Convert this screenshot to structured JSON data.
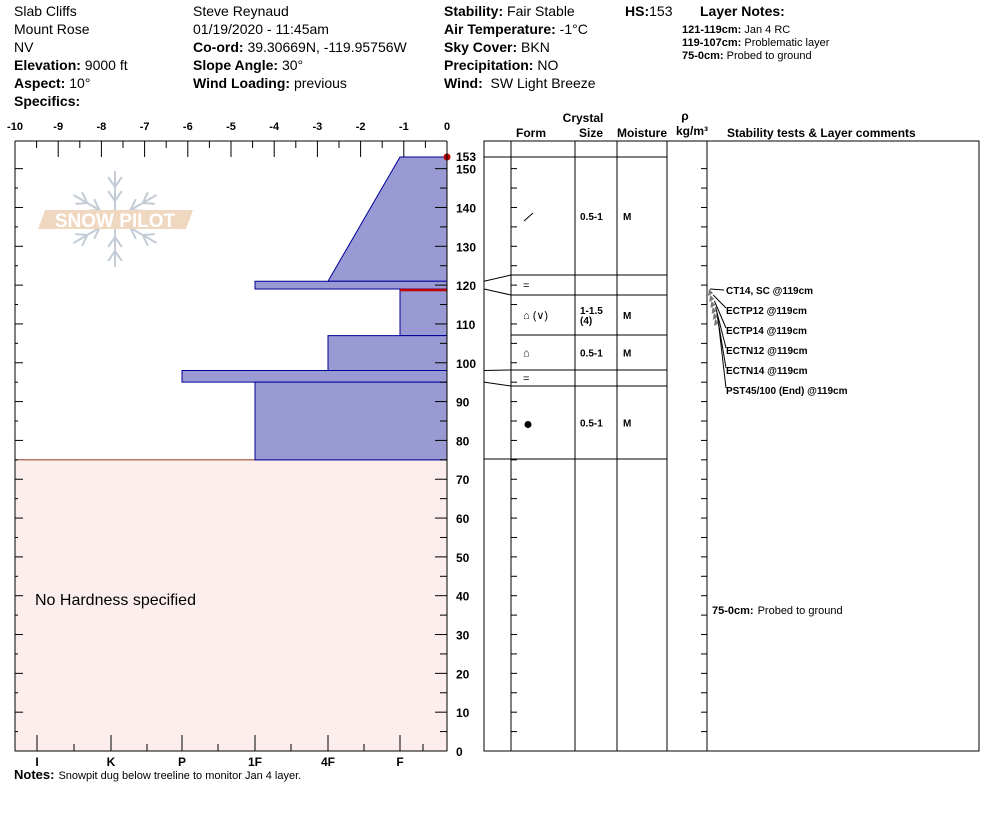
{
  "header": {
    "location": "Slab Cliffs",
    "area": "Mount Rose",
    "state": "NV",
    "elevation_label": "Elevation:",
    "elevation": "9000 ft",
    "aspect_label": "Aspect:",
    "aspect": "10°",
    "specifics_label": "Specifics:",
    "observer": "Steve Reynaud",
    "datetime": "01/19/2020 - 11:45am",
    "coord_label": "Co-ord:",
    "coord": "39.30669N, -119.95756W",
    "slope_label": "Slope Angle:",
    "slope": "30°",
    "wind_loading_label": "Wind Loading:",
    "wind_loading": "previous",
    "stability_label": "Stability:",
    "stability": "Fair Stable",
    "air_temp_label": "Air Temperature:",
    "air_temp": "-1°C",
    "sky_label": "Sky Cover:",
    "sky": "BKN",
    "precip_label": "Precipitation:",
    "precip": "NO",
    "wind_label": "Wind:",
    "wind": "SW Light Breeze",
    "hs_label": "HS:",
    "hs": "153",
    "layer_notes_title": "Layer Notes:",
    "layer_notes": [
      {
        "range": "121-119cm:",
        "text": "Jan 4 RC"
      },
      {
        "range": "119-107cm:",
        "text": "Problematic layer"
      },
      {
        "range": "75-0cm:",
        "text": "Probed to ground"
      }
    ]
  },
  "logo": {
    "text": "SNOW PILOT"
  },
  "columns": {
    "crystal": "Crystal",
    "form": "Form",
    "size": "Size",
    "moisture": "Moisture",
    "rho": "ρ",
    "density_unit": "kg/m³",
    "comments": "Stability tests & Layer comments"
  },
  "chart_data": {
    "type": "area",
    "title": "",
    "x_axis_top": {
      "ticks": [
        "-10",
        "-9",
        "-8",
        "-7",
        "-6",
        "-5",
        "-4",
        "-3",
        "-2",
        "-1",
        "0"
      ],
      "range": [
        -10,
        0
      ]
    },
    "x_axis_bottom": {
      "ticks": [
        "I",
        "K",
        "P",
        "1F",
        "4F",
        "F"
      ]
    },
    "y_axis": {
      "range": [
        0,
        153
      ],
      "ticks": [
        "0",
        "10",
        "20",
        "30",
        "40",
        "50",
        "60",
        "70",
        "80",
        "90",
        "100",
        "110",
        "120",
        "130",
        "140",
        "150"
      ],
      "hs_label": "153"
    },
    "fill_color": "#9999d4",
    "edge_color": "#000099",
    "no_hardness_color": "#fdeeee",
    "no_hardness_text": "No Hardness specified",
    "no_hardness_range": [
      0,
      75
    ],
    "layers": [
      {
        "top": 153,
        "bottom": 121,
        "hardness_top": "F",
        "hardness_bottom": "4F",
        "form": "/",
        "size": "0.5-1",
        "moisture": "M"
      },
      {
        "top": 121,
        "bottom": 119,
        "hardness_top": "1F",
        "hardness_bottom": "1F",
        "form": "=",
        "size": "",
        "moisture": ""
      },
      {
        "top": 119,
        "bottom": 107,
        "hardness_top": "F",
        "hardness_bottom": "F",
        "form": "⌂ (∨)",
        "size": "1-1.5",
        "size2": "(4)",
        "moisture": "M",
        "critical_top": true
      },
      {
        "top": 107,
        "bottom": 98,
        "hardness_top": "4F",
        "hardness_bottom": "4F",
        "form": "⌂",
        "size": "0.5-1",
        "moisture": "M"
      },
      {
        "top": 98,
        "bottom": 95,
        "hardness_top": "P",
        "hardness_bottom": "P",
        "form": "=",
        "size": "",
        "moisture": ""
      },
      {
        "top": 95,
        "bottom": 75,
        "hardness_top": "1F",
        "hardness_bottom": "1F",
        "form": "●",
        "size": "0.5-1",
        "moisture": "M"
      }
    ]
  },
  "tests": [
    "CT14, SC @119cm",
    "ECTP12 @119cm",
    "ECTP14 @119cm",
    "ECTN12 @119cm",
    "ECTN14 @119cm",
    "PST45/100 (End) @119cm"
  ],
  "comment": {
    "range": "75-0cm:",
    "text": "Probed to ground"
  },
  "notes": {
    "label": "Notes:",
    "text": "Snowpit dug below treeline to monitor Jan 4 layer."
  }
}
